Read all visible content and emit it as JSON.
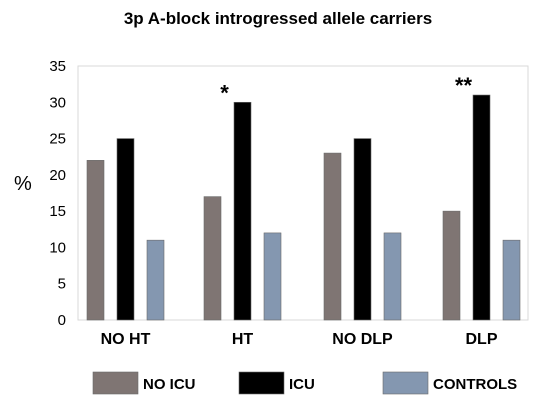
{
  "chart_data": {
    "type": "bar",
    "title": "3p A-block introgressed allele carriers",
    "ylabel": "%",
    "xlabel": "",
    "ylim": [
      0,
      35
    ],
    "yticks": [
      0,
      5,
      10,
      15,
      20,
      25,
      30,
      35
    ],
    "categories": [
      "NO HT",
      "HT",
      "NO DLP",
      "DLP"
    ],
    "series": [
      {
        "name": "NO ICU",
        "color": "#7f7573",
        "values": [
          22,
          17,
          23,
          15
        ]
      },
      {
        "name": "ICU",
        "color": "#000000",
        "values": [
          25,
          30,
          25,
          31
        ]
      },
      {
        "name": "CONTROLS",
        "color": "#8497b0",
        "values": [
          11,
          12,
          12,
          11
        ]
      }
    ],
    "annotations": [
      {
        "category": "HT",
        "series": "ICU",
        "text": "*"
      },
      {
        "category": "DLP",
        "series": "ICU",
        "text": "**"
      }
    ],
    "grid": false,
    "legend": "bottom"
  }
}
